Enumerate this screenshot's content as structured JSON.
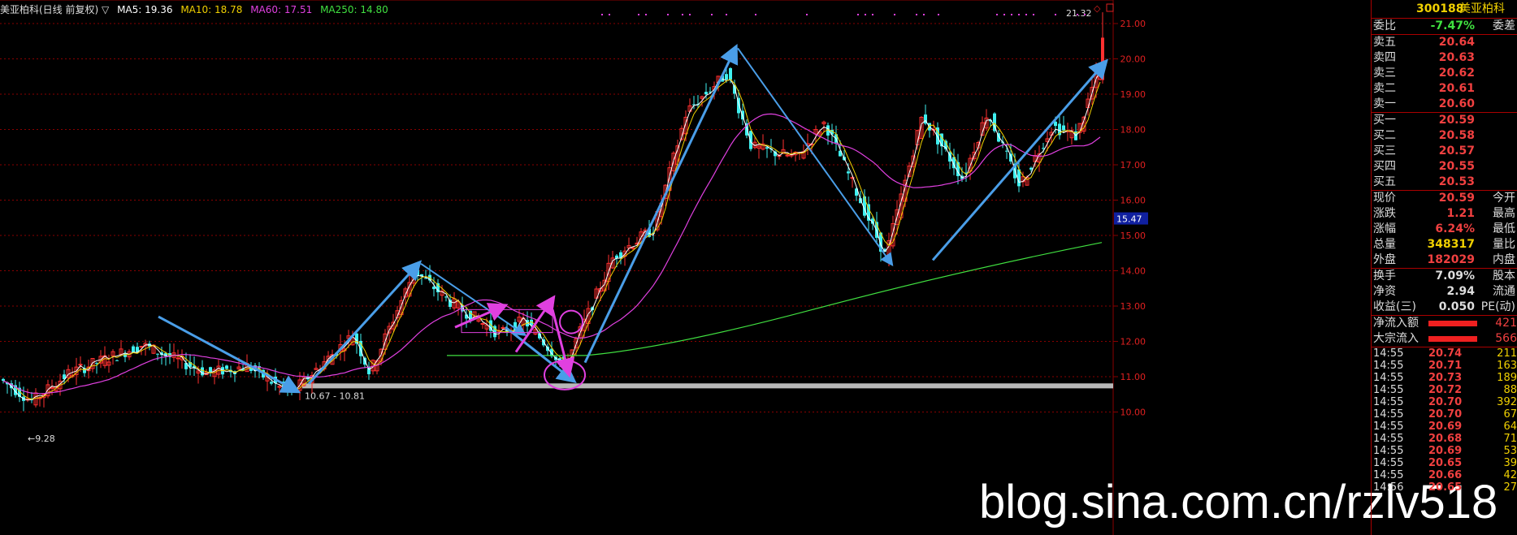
{
  "legend": {
    "title": "美亚柏科(日线 前复权) ▽",
    "ma5": "MA5: 19.36",
    "ma10": "MA10: 18.78",
    "ma60": "MA60: 17.51",
    "ma250": "MA250: 14.80"
  },
  "colors": {
    "up": "#ff3030",
    "down": "#3ff0f0",
    "ma5": "#ffffff",
    "ma10": "#f0d000",
    "ma60": "#e040e0",
    "ma250": "#40e040",
    "arrow_blue": "#4a9ee8",
    "arrow_magenta": "#e040e0",
    "grid": "#8a0000",
    "label": "#e02020"
  },
  "chart_data": {
    "type": "candlestick",
    "title": "美亚柏科(日线 前复权)",
    "y_ticks": [
      "21.00",
      "20.00",
      "19.00",
      "18.00",
      "17.00",
      "16.00",
      "15.00",
      "14.00",
      "13.00",
      "12.00",
      "11.00",
      "10.00"
    ],
    "ylim": [
      9.0,
      21.5
    ],
    "current_price_label": "15.47",
    "high_label": "21.32",
    "low_label": "9.28",
    "support_band_label": "10.67 - 10.81",
    "series": [
      {
        "name": "MA5",
        "value": 19.36
      },
      {
        "name": "MA10",
        "value": 18.78
      },
      {
        "name": "MA60",
        "value": 17.51
      },
      {
        "name": "MA250",
        "value": 14.8
      }
    ]
  },
  "watermark": "blog.sina.com.cn/rzlv518",
  "panel": {
    "code": "300188",
    "name": "美亚柏科",
    "weibi": {
      "label": "委比",
      "value": "-7.47%",
      "suffix": "委差"
    },
    "asks": [
      {
        "label": "卖五",
        "price": "20.64"
      },
      {
        "label": "卖四",
        "price": "20.63"
      },
      {
        "label": "卖三",
        "price": "20.62"
      },
      {
        "label": "卖二",
        "price": "20.61"
      },
      {
        "label": "卖一",
        "price": "20.60"
      }
    ],
    "bids": [
      {
        "label": "买一",
        "price": "20.59"
      },
      {
        "label": "买二",
        "price": "20.58"
      },
      {
        "label": "买三",
        "price": "20.57"
      },
      {
        "label": "买四",
        "price": "20.55"
      },
      {
        "label": "买五",
        "price": "20.53"
      }
    ],
    "stats": [
      {
        "label": "现价",
        "value": "20.59",
        "right": "今开"
      },
      {
        "label": "涨跌",
        "value": "1.21",
        "right": "最高"
      },
      {
        "label": "涨幅",
        "value": "6.24%",
        "right": "最低"
      },
      {
        "label": "总量",
        "value": "348317",
        "right": "量比"
      },
      {
        "label": "外盘",
        "value": "182029",
        "right": "内盘"
      }
    ],
    "stats2": [
      {
        "label": "换手",
        "value": "7.09%",
        "right": "股本"
      },
      {
        "label": "净资",
        "value": "2.94",
        "right": "流通"
      },
      {
        "label": "收益(三)",
        "value": "0.050",
        "right": "PE(动)"
      }
    ],
    "flows": [
      {
        "label": "净流入额",
        "value": "421"
      },
      {
        "label": "大宗流入",
        "value": "566"
      }
    ],
    "ticks": [
      {
        "time": "14:55",
        "price": "20.74",
        "vol": "211"
      },
      {
        "time": "14:55",
        "price": "20.71",
        "vol": "163"
      },
      {
        "time": "14:55",
        "price": "20.73",
        "vol": "189"
      },
      {
        "time": "14:55",
        "price": "20.72",
        "vol": "88"
      },
      {
        "time": "14:55",
        "price": "20.70",
        "vol": "392"
      },
      {
        "time": "14:55",
        "price": "20.70",
        "vol": "67"
      },
      {
        "time": "14:55",
        "price": "20.69",
        "vol": "64"
      },
      {
        "time": "14:55",
        "price": "20.68",
        "vol": "71"
      },
      {
        "time": "14:55",
        "price": "20.69",
        "vol": "53"
      },
      {
        "time": "14:55",
        "price": "20.65",
        "vol": "39"
      },
      {
        "time": "14:55",
        "price": "20.66",
        "vol": "42"
      },
      {
        "time": "14:56",
        "price": "20.65",
        "vol": "27"
      }
    ]
  }
}
